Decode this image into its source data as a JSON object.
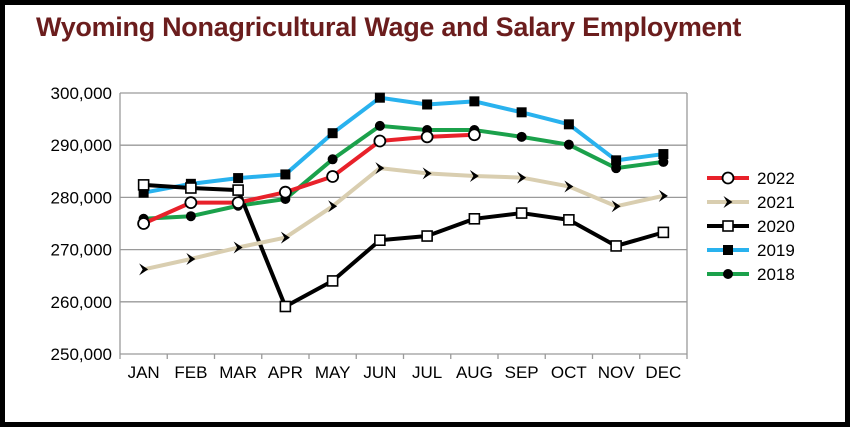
{
  "chart_data": {
    "type": "line",
    "title": "Wyoming Nonagricultural Wage and Salary Employment",
    "xlabel": "",
    "ylabel": "",
    "categories": [
      "JAN",
      "FEB",
      "MAR",
      "APR",
      "MAY",
      "JUN",
      "JUL",
      "AUG",
      "SEP",
      "OCT",
      "NOV",
      "DEC"
    ],
    "ylim": [
      250000,
      300000
    ],
    "yticks": [
      250000,
      260000,
      270000,
      280000,
      290000,
      300000
    ],
    "ytick_labels": [
      "250,000",
      "260,000",
      "270,000",
      "280,000",
      "290,000",
      "300,000"
    ],
    "grid": true,
    "legend_position": "right",
    "series": [
      {
        "name": "2022",
        "color": "#e8212a",
        "marker": "open-circle",
        "values": [
          275000,
          279000,
          279000,
          281000,
          284000,
          290800,
          291600,
          292000,
          null,
          null,
          null,
          null
        ]
      },
      {
        "name": "2021",
        "color": "#d9ceb0",
        "marker": "chevron",
        "values": [
          266200,
          268200,
          270400,
          272300,
          278300,
          285600,
          284600,
          284100,
          283800,
          282100,
          278300,
          280300
        ]
      },
      {
        "name": "2020",
        "color": "#000000",
        "marker": "open-square",
        "values": [
          282400,
          281800,
          281400,
          259100,
          264000,
          271800,
          272600,
          275900,
          277000,
          275700,
          270700,
          273300
        ]
      },
      {
        "name": "2019",
        "color": "#29b2ee",
        "marker": "filled-square",
        "values": [
          280900,
          282600,
          283700,
          284400,
          292300,
          299100,
          297800,
          298400,
          296300,
          294000,
          287100,
          288300
        ]
      },
      {
        "name": "2018",
        "color": "#1ba14b",
        "marker": "filled-circle",
        "values": [
          275900,
          276400,
          278400,
          279700,
          287300,
          293700,
          292900,
          292900,
          291600,
          290100,
          285600,
          286800
        ]
      }
    ]
  }
}
